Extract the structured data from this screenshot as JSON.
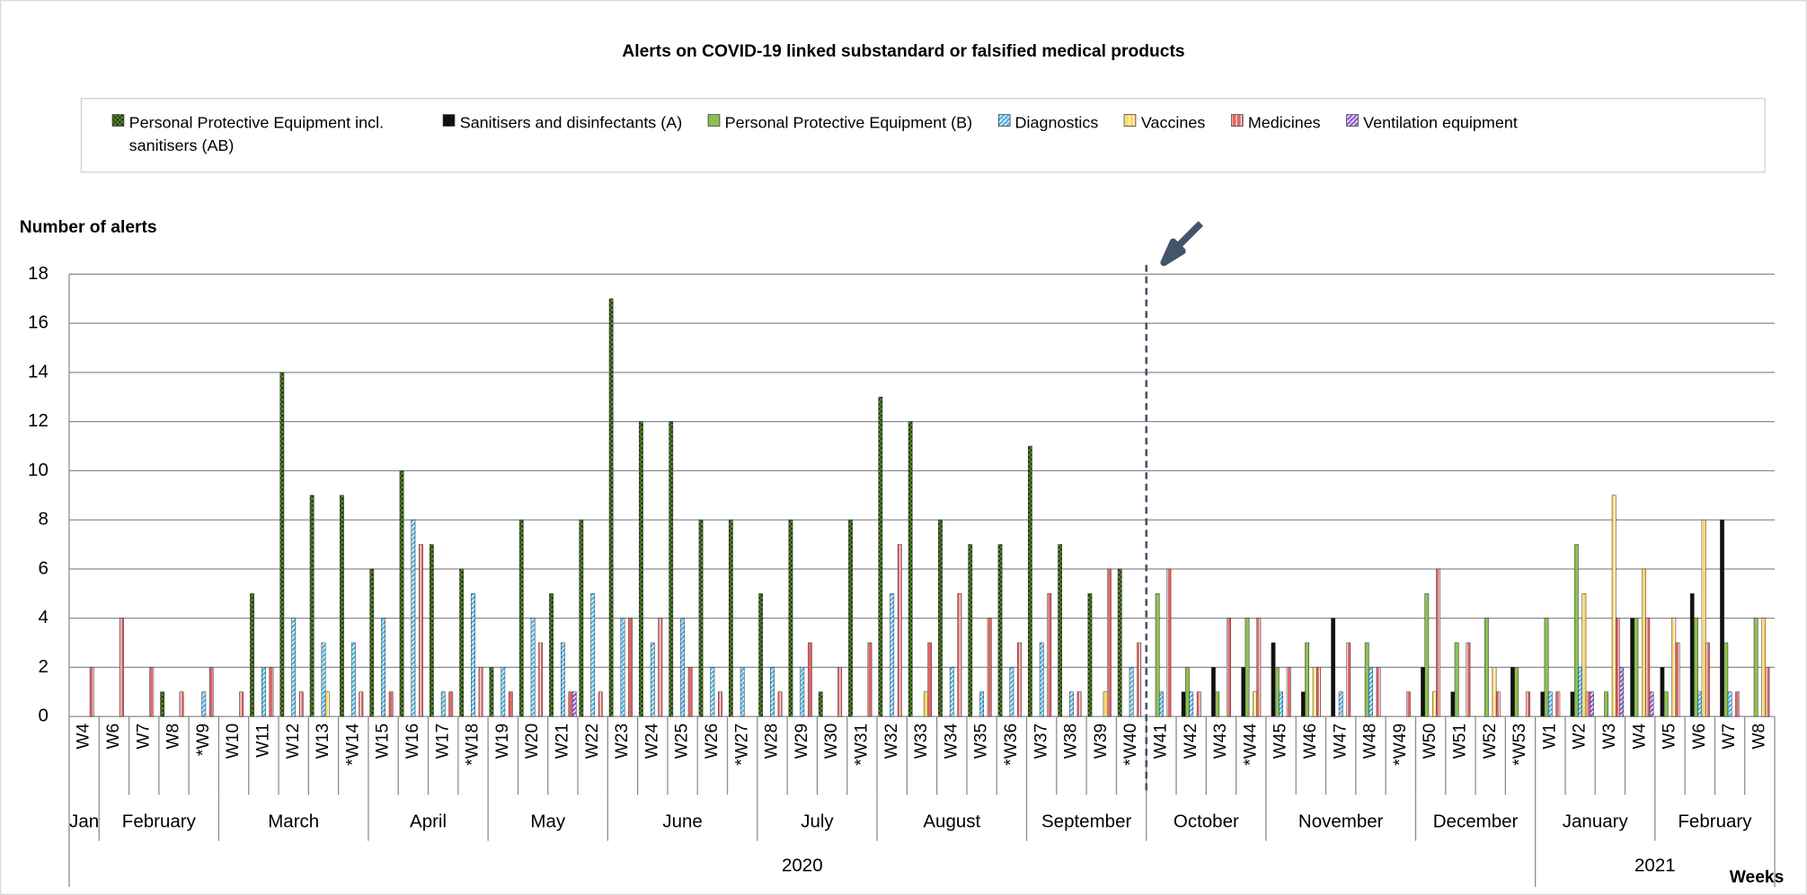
{
  "chart_data": {
    "type": "bar",
    "title": "Alerts on COVID-19 linked substandard or falsified medical products",
    "y_label": "Number of alerts",
    "x_label": "Weeks",
    "categories": [
      "W4",
      "W6",
      "W7",
      "W8",
      "*W9",
      "W10",
      "W11",
      "W12",
      "W13",
      "*W14",
      "W15",
      "W16",
      "W17",
      "*W18",
      "W19",
      "W20",
      "W21",
      "W22",
      "W23",
      "W24",
      "W25",
      "W26",
      "*W27",
      "W28",
      "W29",
      "W30",
      "*W31",
      "W32",
      "W33",
      "W34",
      "W35",
      "*W36",
      "W37",
      "W38",
      "W39",
      "*W40",
      "W41",
      "W42",
      "W43",
      "*W44",
      "W45",
      "W46",
      "W47",
      "W48",
      "*W49",
      "W50",
      "W51",
      "W52",
      "*W53",
      "W1",
      "W2",
      "W3",
      "W4",
      "W5",
      "W6",
      "W7",
      "W8"
    ],
    "months": [
      {
        "label": "Jan",
        "weeks": 1
      },
      {
        "label": "February",
        "weeks": 4
      },
      {
        "label": "March",
        "weeks": 5
      },
      {
        "label": "April",
        "weeks": 4
      },
      {
        "label": "May",
        "weeks": 4
      },
      {
        "label": "June",
        "weeks": 5
      },
      {
        "label": "July",
        "weeks": 4
      },
      {
        "label": "August",
        "weeks": 5
      },
      {
        "label": "September",
        "weeks": 4
      },
      {
        "label": "October",
        "weeks": 4
      },
      {
        "label": "November",
        "weeks": 5
      },
      {
        "label": "December",
        "weeks": 4
      },
      {
        "label": "January",
        "weeks": 4
      },
      {
        "label": "February",
        "weeks": 4
      }
    ],
    "years": [
      {
        "label": "2020",
        "weeks": 49
      },
      {
        "label": "2021",
        "weeks": 8
      }
    ],
    "series": [
      {
        "name": "Personal Protective Equipment incl. sanitisers (AB)",
        "color": "#5e8f2e",
        "values": [
          0,
          0,
          0,
          1,
          0,
          0,
          5,
          14,
          9,
          9,
          6,
          10,
          7,
          6,
          2,
          8,
          5,
          8,
          17,
          12,
          12,
          8,
          8,
          5,
          8,
          1,
          8,
          13,
          12,
          8,
          7,
          7,
          11,
          7,
          5,
          6,
          0,
          0,
          0,
          0,
          0,
          0,
          0,
          0,
          0,
          0,
          0,
          0,
          0,
          0,
          0,
          0,
          0,
          0,
          0,
          0,
          0
        ]
      },
      {
        "name": "Sanitisers and disinfectants (A)",
        "color": "#111111",
        "values": [
          0,
          0,
          0,
          0,
          0,
          0,
          0,
          0,
          0,
          0,
          0,
          0,
          0,
          0,
          0,
          0,
          0,
          0,
          0,
          0,
          0,
          0,
          0,
          0,
          0,
          0,
          0,
          0,
          0,
          0,
          0,
          0,
          0,
          0,
          0,
          0,
          0,
          1,
          2,
          2,
          3,
          1,
          4,
          0,
          0,
          2,
          1,
          0,
          2,
          1,
          1,
          0,
          4,
          2,
          5,
          8,
          0
        ]
      },
      {
        "name": "Personal Protective Equipment (B)",
        "color": "#8cc152",
        "values": [
          0,
          0,
          0,
          0,
          0,
          0,
          0,
          0,
          0,
          0,
          0,
          0,
          0,
          0,
          0,
          0,
          0,
          0,
          0,
          0,
          0,
          0,
          0,
          0,
          0,
          0,
          0,
          0,
          0,
          0,
          0,
          0,
          0,
          0,
          0,
          0,
          5,
          2,
          1,
          4,
          2,
          3,
          0,
          3,
          0,
          5,
          3,
          4,
          2,
          4,
          7,
          1,
          4,
          1,
          4,
          3,
          4
        ]
      },
      {
        "name": "Diagnostics",
        "color": "#4db3e6",
        "values": [
          0,
          0,
          0,
          0,
          1,
          0,
          2,
          4,
          3,
          3,
          4,
          8,
          1,
          5,
          2,
          4,
          3,
          5,
          4,
          3,
          4,
          2,
          2,
          2,
          2,
          0,
          0,
          5,
          0,
          2,
          1,
          2,
          3,
          1,
          0,
          2,
          1,
          1,
          0,
          0,
          1,
          0,
          1,
          2,
          0,
          0,
          0,
          0,
          0,
          1,
          2,
          0,
          0,
          0,
          1,
          1,
          0
        ]
      },
      {
        "name": "Vaccines",
        "color": "#ffd966",
        "values": [
          0,
          0,
          0,
          0,
          0,
          0,
          0,
          0,
          1,
          0,
          0,
          0,
          0,
          0,
          0,
          0,
          0,
          0,
          0,
          0,
          0,
          0,
          0,
          0,
          0,
          0,
          0,
          0,
          1,
          0,
          0,
          0,
          0,
          0,
          1,
          0,
          0,
          0,
          0,
          1,
          0,
          2,
          0,
          0,
          0,
          1,
          0,
          2,
          0,
          0,
          5,
          9,
          6,
          4,
          8,
          0,
          4
        ]
      },
      {
        "name": "Medicines",
        "color": "#e06666",
        "values": [
          2,
          4,
          2,
          1,
          2,
          1,
          2,
          1,
          0,
          1,
          1,
          7,
          1,
          2,
          1,
          3,
          1,
          1,
          4,
          4,
          2,
          1,
          0,
          1,
          3,
          2,
          3,
          7,
          3,
          5,
          4,
          3,
          5,
          1,
          6,
          3,
          6,
          1,
          4,
          4,
          2,
          2,
          3,
          2,
          1,
          6,
          3,
          1,
          1,
          1,
          1,
          4,
          4,
          3,
          3,
          1,
          2
        ]
      },
      {
        "name": "Ventilation equipment",
        "color": "#8e5ecf",
        "values": [
          0,
          0,
          0,
          0,
          0,
          0,
          0,
          0,
          0,
          0,
          0,
          0,
          0,
          0,
          0,
          0,
          1,
          0,
          0,
          0,
          0,
          0,
          0,
          0,
          0,
          0,
          0,
          0,
          0,
          0,
          0,
          0,
          0,
          0,
          0,
          0,
          0,
          0,
          0,
          0,
          0,
          0,
          0,
          0,
          0,
          0,
          0,
          0,
          0,
          0,
          1,
          2,
          1,
          0,
          0,
          0,
          0
        ]
      }
    ],
    "ylim": [
      0,
      18
    ],
    "yticks": [
      0,
      2,
      4,
      6,
      8,
      10,
      12,
      14,
      16,
      18
    ],
    "grid": true
  }
}
